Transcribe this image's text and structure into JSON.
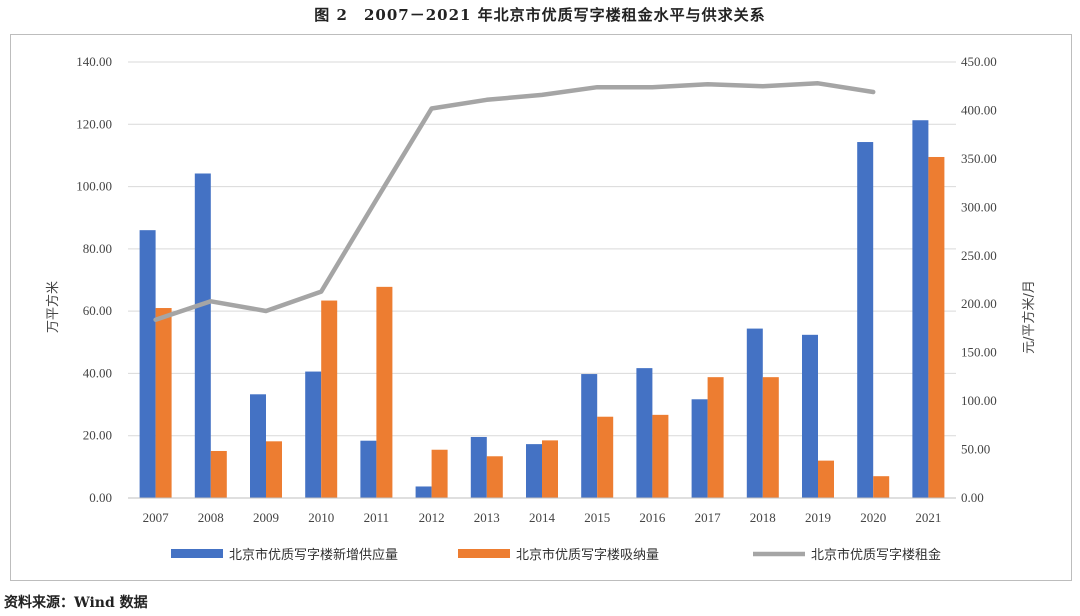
{
  "figure_title": "图 2　2007－2021 年北京市优质写字楼租金水平与供求关系",
  "source_note": "资料来源：Wind 数据",
  "chart_data": {
    "type": "bar",
    "categories": [
      "2007",
      "2008",
      "2009",
      "2010",
      "2011",
      "2012",
      "2013",
      "2014",
      "2015",
      "2016",
      "2017",
      "2018",
      "2019",
      "2020",
      "2021"
    ],
    "series": [
      {
        "name": "北京市优质写字楼新增供应量",
        "type": "bar",
        "axis": "left",
        "color": "#4472C4",
        "values": [
          86.0,
          104.2,
          33.3,
          40.6,
          18.4,
          3.7,
          19.6,
          17.3,
          39.8,
          41.7,
          31.7,
          54.4,
          52.4,
          114.3,
          121.3
        ]
      },
      {
        "name": "北京市优质写字楼吸纳量",
        "type": "bar",
        "axis": "left",
        "color": "#ED7D31",
        "values": [
          61.0,
          15.1,
          18.2,
          63.4,
          67.8,
          15.5,
          13.4,
          18.5,
          26.1,
          26.7,
          38.8,
          38.8,
          12.0,
          7.0,
          109.5
        ]
      },
      {
        "name": "北京市优质写字楼租金",
        "type": "line",
        "axis": "right",
        "color": "#A5A5A5",
        "values": [
          184,
          203,
          193,
          213,
          308,
          402,
          411,
          416,
          424,
          424,
          427,
          425,
          428,
          419,
          null
        ]
      }
    ],
    "ylabel": "万平方米",
    "y2label": "元/平方米/月",
    "ylim": [
      0,
      140
    ],
    "y2lim": [
      0,
      450
    ],
    "yticks": [
      "0.00",
      "20.00",
      "40.00",
      "60.00",
      "80.00",
      "100.00",
      "120.00",
      "140.00"
    ],
    "y2ticks": [
      "0.00",
      "50.00",
      "100.00",
      "150.00",
      "200.00",
      "250.00",
      "300.00",
      "350.00",
      "400.00",
      "450.00"
    ],
    "grid": true,
    "legend_position": "bottom"
  }
}
